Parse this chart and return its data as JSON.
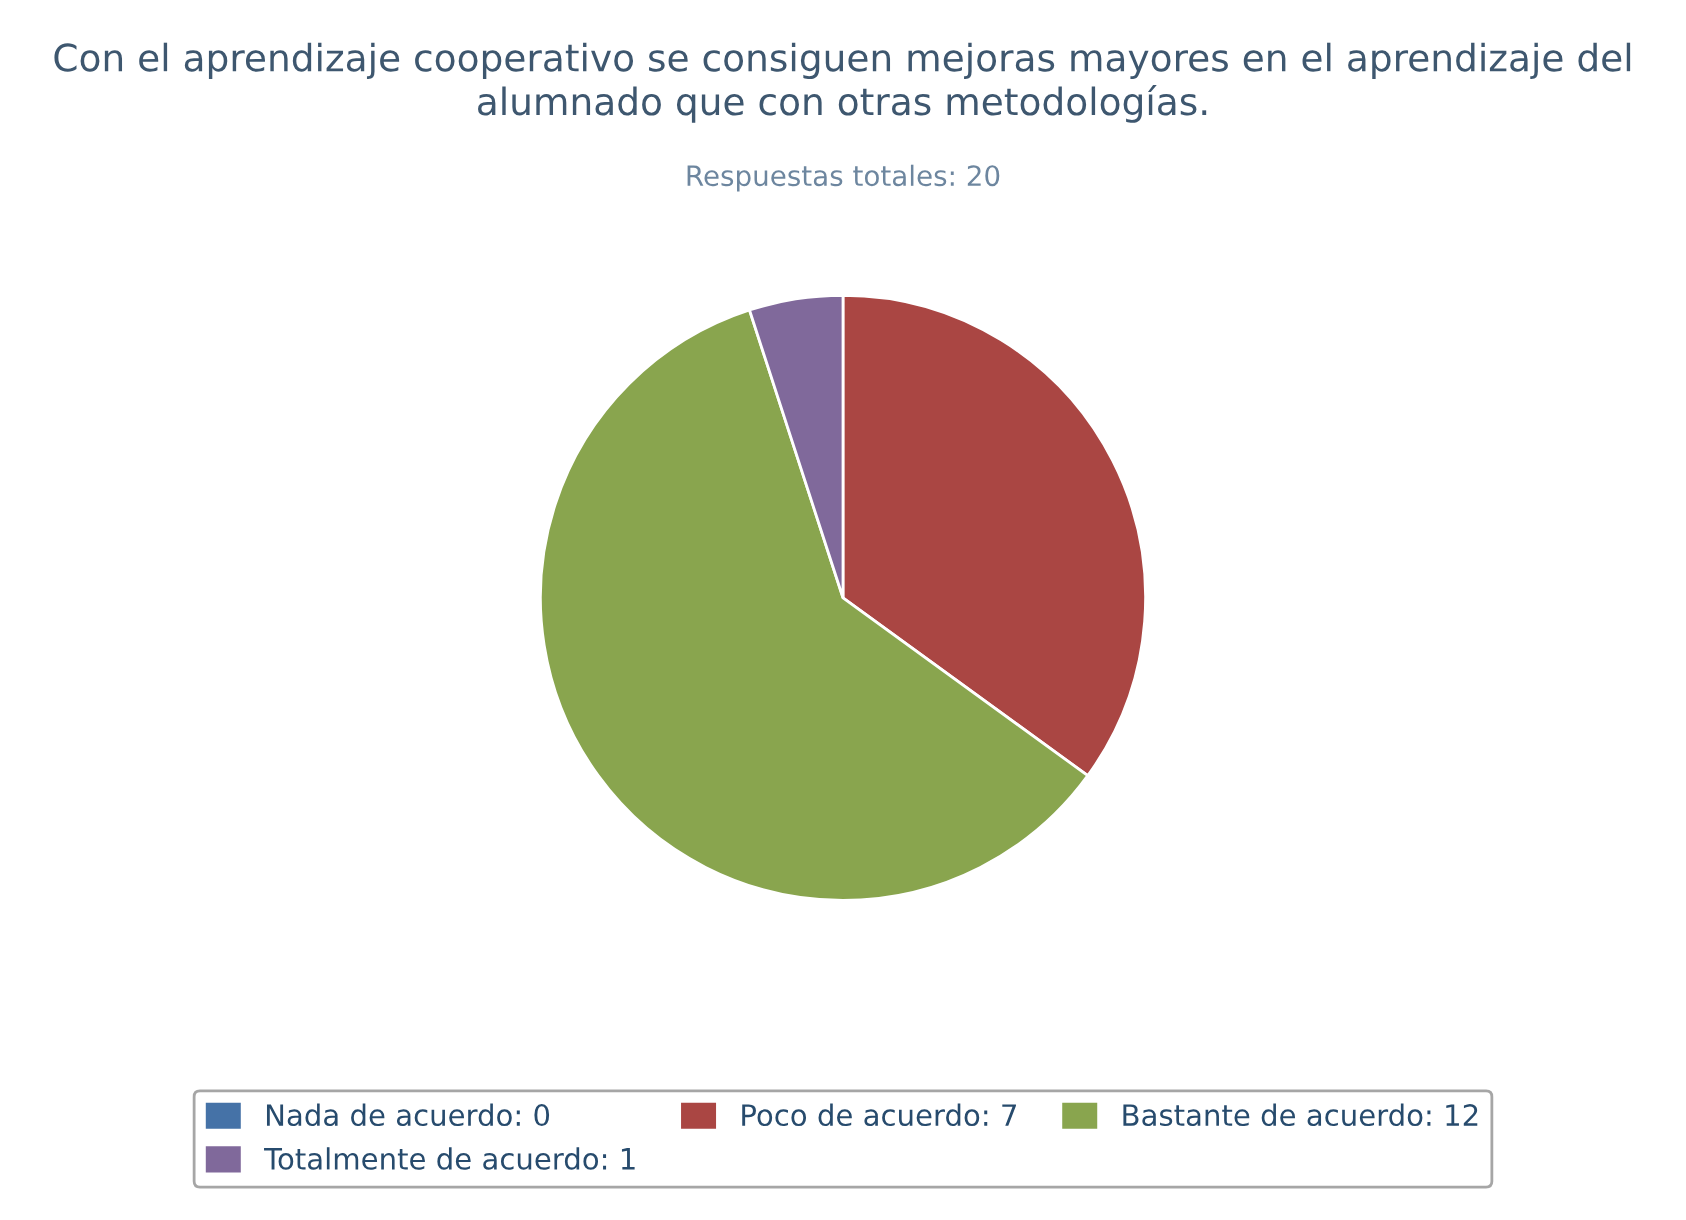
{
  "chart_data": {
    "type": "pie",
    "title": "Con el aprendizaje cooperativo se consiguen mejoras mayores en el aprendizaje del alumnado que con otras metodologías.",
    "subtitle": "Respuestas totales: 20",
    "categories": [
      "Nada de acuerdo: 0",
      "Poco de acuerdo: 7",
      "Bastante de acuerdo: 12",
      "Totalmente de acuerdo: 1"
    ],
    "values": [
      0,
      7,
      12,
      1
    ],
    "colors": [
      "#4572a7",
      "#aa4643",
      "#89a54e",
      "#80699b"
    ],
    "legend": "bottom"
  }
}
